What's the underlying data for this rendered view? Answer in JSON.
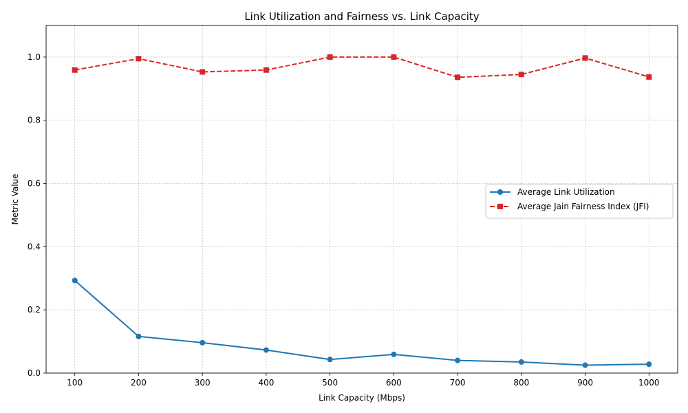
{
  "chart_data": {
    "type": "line",
    "title": "Link Utilization and Fairness vs. Link Capacity",
    "xlabel": "Link Capacity (Mbps)",
    "ylabel": "Metric Value",
    "x": [
      100,
      200,
      300,
      400,
      500,
      600,
      700,
      800,
      900,
      1000
    ],
    "xticks": [
      "100",
      "200",
      "300",
      "400",
      "500",
      "600",
      "700",
      "800",
      "900",
      "1000"
    ],
    "yticks": [
      "0.0",
      "0.2",
      "0.4",
      "0.6",
      "0.8",
      "1.0"
    ],
    "ylim": [
      0,
      1.1
    ],
    "grid": true,
    "legend_position": "center-right",
    "series": [
      {
        "name": "Average Link Utilization",
        "color": "#1f77b4",
        "marker": "circle",
        "linestyle": "solid",
        "values": [
          0.293,
          0.116,
          0.096,
          0.073,
          0.043,
          0.059,
          0.04,
          0.035,
          0.025,
          0.028
        ]
      },
      {
        "name": "Average Jain Fairness Index (JFI)",
        "color": "#d62728",
        "marker": "square",
        "linestyle": "dashed",
        "values": [
          0.959,
          0.995,
          0.953,
          0.959,
          1.0,
          1.0,
          0.936,
          0.945,
          0.997,
          0.937
        ]
      }
    ]
  }
}
